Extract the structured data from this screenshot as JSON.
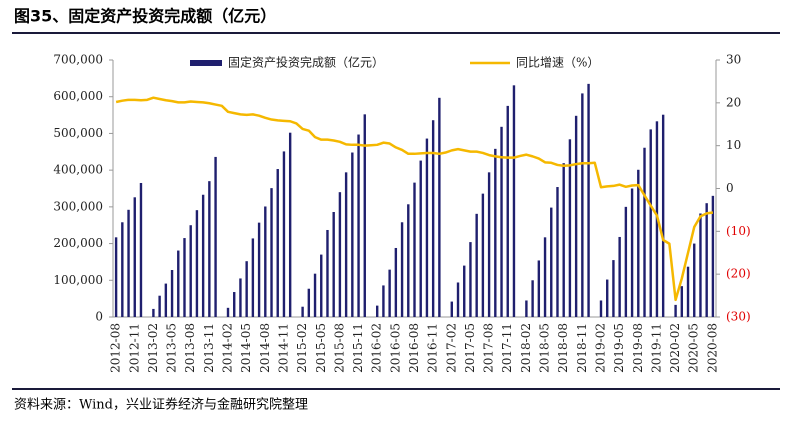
{
  "title": "图35、固定资产投资完成额（亿元）",
  "source": "资料来源：Wind，兴业证券经济与金融研究院整理",
  "chart_data": {
    "type": "bar-line",
    "categories": [
      "2012-08",
      null,
      null,
      "2012-11",
      null,
      null,
      "2013-02",
      null,
      null,
      "2013-05",
      null,
      null,
      "2013-08",
      null,
      null,
      "2013-11",
      null,
      null,
      "2014-02",
      null,
      null,
      "2014-05",
      null,
      null,
      "2014-08",
      null,
      null,
      "2014-11",
      null,
      null,
      "2015-02",
      null,
      null,
      "2015-05",
      null,
      null,
      "2015-08",
      null,
      null,
      "2015-11",
      null,
      null,
      "2016-02",
      null,
      null,
      "2016-05",
      null,
      null,
      "2016-08",
      null,
      null,
      "2016-11",
      null,
      null,
      "2017-02",
      null,
      null,
      "2017-05",
      null,
      null,
      "2017-08",
      null,
      null,
      "2017-11",
      null,
      null,
      "2018-02",
      null,
      null,
      "2018-05",
      null,
      null,
      "2018-08",
      null,
      null,
      "2018-11",
      null,
      null,
      "2019-02",
      null,
      null,
      "2019-05",
      null,
      null,
      "2019-08",
      null,
      null,
      "2019-11",
      null,
      null,
      "2020-02",
      null,
      null,
      "2020-05",
      null,
      null,
      "2020-08"
    ],
    "series": [
      {
        "name": "固定资产投资完成额（亿元）",
        "type": "bar",
        "color": "#1f1f6e",
        "axis": "y",
        "values": [
          217000,
          258000,
          292000,
          326000,
          365000,
          null,
          22000,
          58000,
          91000,
          128000,
          181000,
          215000,
          250000,
          291000,
          333000,
          370000,
          436000,
          null,
          25000,
          68000,
          105000,
          152000,
          214000,
          257000,
          301000,
          351000,
          403000,
          451000,
          502000,
          null,
          28000,
          77000,
          118000,
          170000,
          237000,
          286000,
          340000,
          394000,
          448000,
          497000,
          552000,
          null,
          31000,
          86000,
          129000,
          188000,
          258000,
          307000,
          366000,
          426000,
          486000,
          536000,
          597000,
          null,
          42000,
          94000,
          140000,
          204000,
          281000,
          336000,
          394000,
          458000,
          518000,
          575000,
          631000,
          null,
          45000,
          100000,
          154000,
          217000,
          298000,
          354000,
          419000,
          484000,
          548000,
          609000,
          635000,
          null,
          45000,
          102000,
          155000,
          218000,
          300000,
          350000,
          401000,
          461000,
          511000,
          533000,
          551000,
          null,
          33000,
          84000,
          137000,
          200000,
          282000,
          310000,
          330000
        ]
      },
      {
        "name": "同比增速（%）",
        "type": "line",
        "color": "#f5b800",
        "axis": "y2",
        "values": [
          20.2,
          20.5,
          20.7,
          20.7,
          20.6,
          20.7,
          21.2,
          20.9,
          20.6,
          20.4,
          20.1,
          20.1,
          20.3,
          20.2,
          20.1,
          19.9,
          19.6,
          19.3,
          17.9,
          17.6,
          17.3,
          17.2,
          17.3,
          17.0,
          16.5,
          16.1,
          15.9,
          15.8,
          15.7,
          15.2,
          13.9,
          13.5,
          12.0,
          11.4,
          11.4,
          11.2,
          10.9,
          10.3,
          10.2,
          10.2,
          10.0,
          10.1,
          10.2,
          10.7,
          10.5,
          9.6,
          9.0,
          8.1,
          8.1,
          8.2,
          8.3,
          8.3,
          8.1,
          8.4,
          8.9,
          9.2,
          8.9,
          8.6,
          8.6,
          8.3,
          7.8,
          7.5,
          7.3,
          7.2,
          7.2,
          7.6,
          7.9,
          7.5,
          7.0,
          6.1,
          6.0,
          5.5,
          5.3,
          5.4,
          5.7,
          5.9,
          5.9,
          6.0,
          0.3,
          0.5,
          0.6,
          0.9,
          0.4,
          0.7,
          0.8,
          -1.6,
          -4.0,
          -6.3,
          -12.0,
          -12.9,
          -26.0,
          -21.0,
          -15.0,
          -9.0,
          -6.5,
          -5.8,
          -5.6
        ]
      }
    ],
    "ylim": [
      0,
      700000
    ],
    "yticks": [
      0,
      {
        "value": 100000,
        "label": "100,000"
      },
      {
        "value": 200000,
        "label": "200,000"
      },
      {
        "value": 300000,
        "label": "300,000"
      },
      {
        "value": 400000,
        "label": "400,000"
      },
      {
        "value": 500000,
        "label": "500,000"
      },
      {
        "value": 600000,
        "label": "600,000"
      },
      {
        "value": 700000,
        "label": "700,000"
      }
    ],
    "y2lim": [
      -30,
      30
    ],
    "y2ticks": [
      {
        "value": -30,
        "label": "(30)"
      },
      {
        "value": -20,
        "label": "(20)"
      },
      {
        "value": -10,
        "label": "(10)"
      },
      0,
      10,
      20,
      30
    ]
  }
}
